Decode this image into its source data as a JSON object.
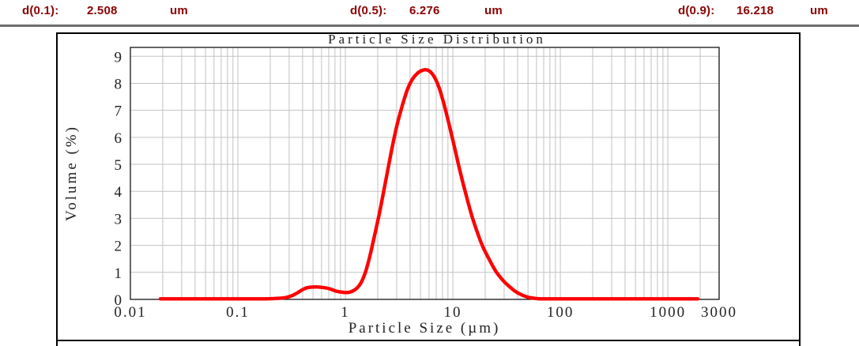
{
  "header": {
    "items": [
      {
        "label": "d(0.1):",
        "value": "2.508",
        "unit": "um"
      },
      {
        "label": "d(0.5):",
        "value": "6.276",
        "unit": "um"
      },
      {
        "label": "d(0.9):",
        "value": "16.218",
        "unit": "um"
      }
    ],
    "text_color": "#8B0000"
  },
  "chart_data": {
    "type": "line",
    "title": "Particle Size Distribution",
    "xlabel": "Particle Size (µm)",
    "ylabel": "Volume (%)",
    "x_scale": "log",
    "xlim": [
      0.01,
      3000
    ],
    "x_ticks": [
      0.01,
      0.1,
      1,
      10,
      100,
      1000,
      3000
    ],
    "x_tick_labels": [
      "0.01",
      "0.1",
      "1",
      "10",
      "100",
      "1000",
      "3000"
    ],
    "y_ticks": [
      0,
      1,
      2,
      3,
      4,
      5,
      6,
      7,
      8,
      9
    ],
    "ylim": [
      0,
      9.33
    ],
    "grid": true,
    "grid_color": "#c2c2c2",
    "legend": "none",
    "series": [
      {
        "name": "volume-distribution",
        "color": "#fe0000",
        "stroke_width": 4.4,
        "points": [
          [
            0.019,
            0.02
          ],
          [
            0.03,
            0.02
          ],
          [
            0.05,
            0.02
          ],
          [
            0.08,
            0.02
          ],
          [
            0.12,
            0.02
          ],
          [
            0.18,
            0.02
          ],
          [
            0.24,
            0.04
          ],
          [
            0.28,
            0.07
          ],
          [
            0.32,
            0.14
          ],
          [
            0.36,
            0.25
          ],
          [
            0.4,
            0.36
          ],
          [
            0.44,
            0.43
          ],
          [
            0.48,
            0.455
          ],
          [
            0.55,
            0.46
          ],
          [
            0.62,
            0.44
          ],
          [
            0.7,
            0.4
          ],
          [
            0.8,
            0.32
          ],
          [
            0.9,
            0.275
          ],
          [
            1.0,
            0.255
          ],
          [
            1.1,
            0.27
          ],
          [
            1.25,
            0.38
          ],
          [
            1.4,
            0.62
          ],
          [
            1.55,
            1.05
          ],
          [
            1.7,
            1.65
          ],
          [
            1.9,
            2.5
          ],
          [
            2.1,
            3.3
          ],
          [
            2.4,
            4.5
          ],
          [
            2.7,
            5.55
          ],
          [
            3.0,
            6.4
          ],
          [
            3.4,
            7.2
          ],
          [
            3.8,
            7.8
          ],
          [
            4.2,
            8.15
          ],
          [
            4.7,
            8.38
          ],
          [
            5.2,
            8.48
          ],
          [
            5.7,
            8.5
          ],
          [
            6.2,
            8.42
          ],
          [
            6.8,
            8.2
          ],
          [
            7.5,
            7.8
          ],
          [
            8.3,
            7.2
          ],
          [
            9.2,
            6.5
          ],
          [
            10.2,
            5.75
          ],
          [
            11.5,
            4.85
          ],
          [
            13,
            4.0
          ],
          [
            15,
            3.1
          ],
          [
            17,
            2.45
          ],
          [
            19,
            1.95
          ],
          [
            22,
            1.45
          ],
          [
            25,
            1.05
          ],
          [
            29,
            0.72
          ],
          [
            33,
            0.5
          ],
          [
            38,
            0.3
          ],
          [
            44,
            0.16
          ],
          [
            50,
            0.08
          ],
          [
            57,
            0.04
          ],
          [
            65,
            0.02
          ],
          [
            80,
            0.02
          ],
          [
            120,
            0.02
          ],
          [
            250,
            0.02
          ],
          [
            500,
            0.02
          ],
          [
            1000,
            0.02
          ],
          [
            1500,
            0.02
          ],
          [
            1900,
            0.02
          ]
        ]
      }
    ]
  }
}
